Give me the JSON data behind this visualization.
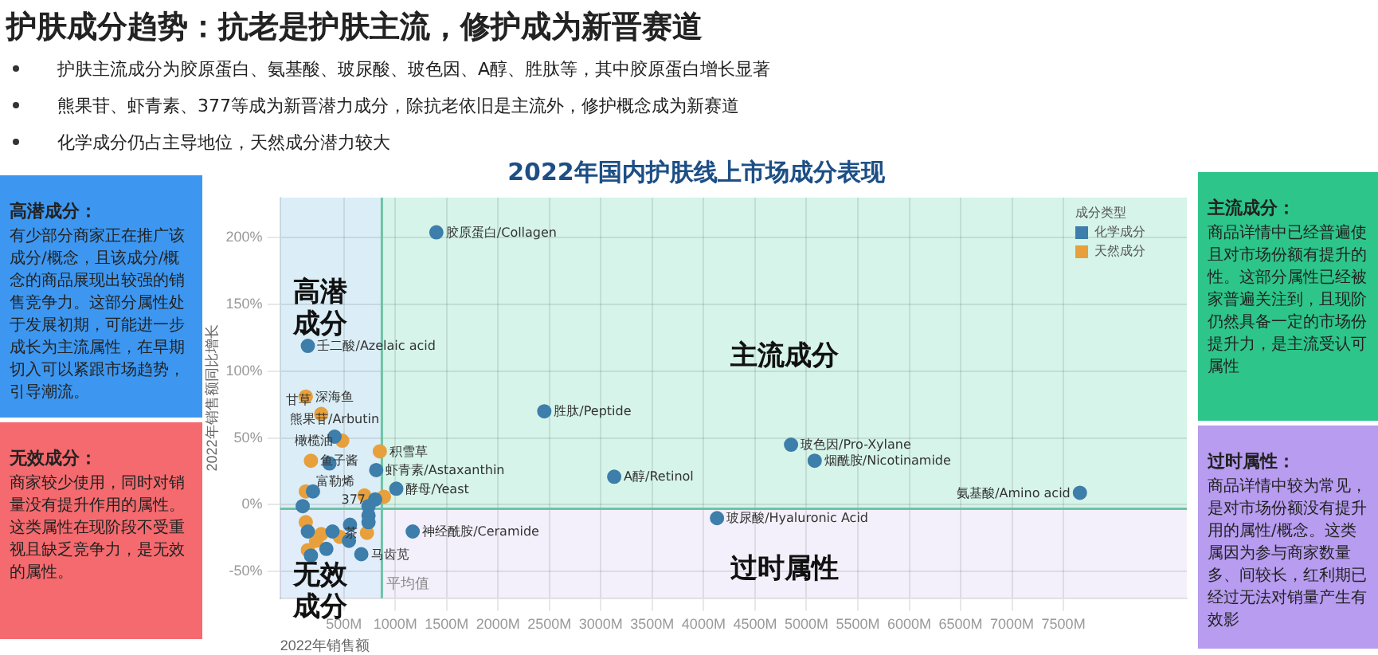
{
  "chart_data": {
    "type": "scatter",
    "title": "2022年国内护肤线上市场成分表现",
    "xlabel": "2022年销售额",
    "ylabel": "2022年销售额同比增长",
    "legend_title": "成分类型",
    "legend": "top right",
    "grid": true,
    "marker": "circle",
    "xlim": [
      -120,
      8700
    ],
    "ylim": [
      -70,
      230
    ],
    "xticks": [
      {
        "value": 500,
        "label": "500M"
      },
      {
        "value": 1000,
        "label": "1000M"
      },
      {
        "value": 1500,
        "label": "1500M"
      },
      {
        "value": 2000,
        "label": "2000M"
      },
      {
        "value": 2500,
        "label": "2500M"
      },
      {
        "value": 3000,
        "label": "3000M"
      },
      {
        "value": 3500,
        "label": "3500M"
      },
      {
        "value": 4000,
        "label": "4000M"
      },
      {
        "value": 4500,
        "label": "4500M"
      },
      {
        "value": 5000,
        "label": "5000M"
      },
      {
        "value": 5500,
        "label": "5500M"
      },
      {
        "value": 6000,
        "label": "6000M"
      },
      {
        "value": 6500,
        "label": "6500M"
      },
      {
        "value": 7000,
        "label": "7000M"
      },
      {
        "value": 7500,
        "label": "7500M"
      }
    ],
    "yticks": [
      {
        "value": -50,
        "label": "-50%"
      },
      {
        "value": 0,
        "label": "0%"
      },
      {
        "value": 50,
        "label": "50%"
      },
      {
        "value": 100,
        "label": "100%"
      },
      {
        "value": 150,
        "label": "150%"
      },
      {
        "value": 200,
        "label": "200%"
      }
    ],
    "ref_lines": [
      {
        "axis": "x",
        "value": 870,
        "label": "平均值",
        "color": "#6cc4a4"
      },
      {
        "axis": "y",
        "value": -3,
        "color": "#6cc4a4"
      }
    ],
    "bands": [
      {
        "axis": "y",
        "from": -3,
        "to": 230,
        "color": "#c4f0df"
      },
      {
        "axis": "y",
        "from": -70,
        "to": -3,
        "color": "#eeeaf9"
      },
      {
        "axis": "x",
        "from": -120,
        "to": 870,
        "color": "#dcecfb"
      }
    ],
    "series": [
      {
        "name": "化学成分",
        "color": "#3d7eab",
        "x": [
          1400,
          150,
          410,
          360,
          815,
          1010,
          805,
          1170,
          670,
          4850,
          5080,
          7660,
          4130,
          2450,
          3130,
          200,
          100,
          360,
          390,
          560,
          550,
          330,
          180,
          740,
          740,
          740,
          150
        ],
        "values": [
          204,
          119,
          51,
          31,
          26,
          12,
          4,
          -20,
          -37,
          45,
          33,
          9,
          -10,
          70,
          21,
          10,
          -1,
          null,
          -20,
          -15,
          -27,
          -33,
          -38,
          -1,
          -8,
          -13,
          -20
        ]
      },
      {
        "name": "天然成分",
        "color": "#e8a03c",
        "x": [
          130,
          280,
          485,
          180,
          850,
          700,
          890,
          725,
          130,
          200,
          280,
          230,
          150,
          180,
          460,
          130
        ],
        "values": [
          81,
          68,
          48,
          33,
          40,
          7,
          6,
          -21,
          -13,
          null,
          -22,
          -27,
          -34,
          null,
          -24,
          10
        ]
      }
    ],
    "annotations": [
      "护肤成分趋势：抗老是护肤主流，修护成为新晋赛道",
      "护肤主流成分为胶原蛋白、氨基酸、玻尿酸、玻色因、A醇、胜肽等，其中胶原蛋白增长显著",
      "熊果苷、虾青素、377等成为新晋潜力成分，除抗老依旧是主流外，修护概念成为新赛道",
      "化学成分仍占主导地位，天然成分潜力较大",
      "高潜成分：",
      "有少部分商家正在推广该成分/概念，且该成分/概念的商品展现出较强的销售竞争力。这部分属性处于发展初期，可能进一步成长为主流属性，在早期切入可以紧跟市场趋势，引导潮流。",
      "无效成分：",
      "商家较少使用，同时对销量没有提升作用的属性。这类属性在现阶段不受重视且缺乏竞争力，是无效的属性。",
      "主流成分：",
      "商品详情中已经普遍使且对市场份额有提升的性。这部分属性已经被家普遍关注到，且现阶仍然具备一定的市场份提升力，是主流受认可属性",
      "过时属性：",
      "商品详情中较为常见，是对市场份额没有提升用的属性/概念。这类属因为参与商家数量多、间较长，红利期已经过无法对销量产生有效影",
      "高潜成分",
      "主流成分",
      "无效成分",
      "过时属性",
      {
        "text": "胶原蛋白/Collagen",
        "x": 1400,
        "y": 204
      },
      {
        "text": "壬二酸/Azelaic acid",
        "x": 150,
        "y": 119
      },
      {
        "text": "胜肽/Peptide",
        "x": 2450,
        "y": 70
      },
      {
        "text": "A醇/Retinol",
        "x": 3130,
        "y": 21
      },
      {
        "text": "玻尿酸/Hyaluronic Acid",
        "x": 4130,
        "y": -10
      },
      {
        "text": "玻色因/Pro-Xylane",
        "x": 4850,
        "y": 45
      },
      {
        "text": "烟酰胺/Nicotinamide",
        "x": 5080,
        "y": 33
      },
      {
        "text": "氨基酸/Amino acid",
        "x": 7660,
        "y": 9
      },
      {
        "text": "熊果苷/Arbutin",
        "x": 410,
        "y": 51
      },
      {
        "text": "虾青素/Astaxanthin",
        "x": 815,
        "y": 26
      },
      {
        "text": "酵母/Yeast",
        "x": 1010,
        "y": 12
      },
      {
        "text": "377",
        "x": 805,
        "y": 4
      },
      {
        "text": "神经酰胺/Ceramide",
        "x": 1170,
        "y": -20
      },
      {
        "text": "深海鱼",
        "x": 130,
        "y": 81
      },
      {
        "text": "甘草",
        "x": 280,
        "y": 68
      },
      {
        "text": "橄榄油",
        "x": 485,
        "y": 48
      },
      {
        "text": "鱼子酱",
        "x": 180,
        "y": 33
      },
      {
        "text": "积雪草",
        "x": 850,
        "y": 40
      },
      {
        "text": "富勒烯",
        "x": 700,
        "y": 7
      },
      {
        "text": "茶",
        "x": 725,
        "y": -21
      },
      {
        "text": "马齿苋",
        "x": 670,
        "y": -37
      }
    ]
  }
}
